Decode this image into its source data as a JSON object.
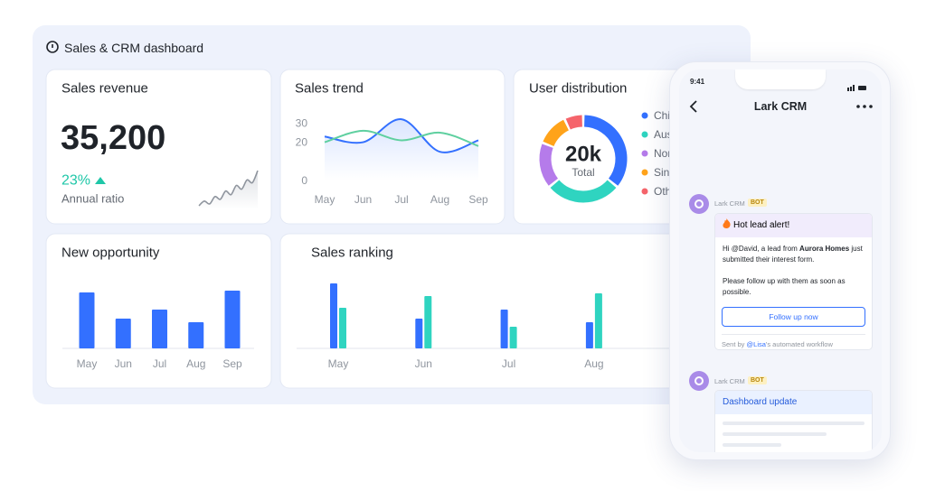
{
  "header": {
    "title": "Sales & CRM dashboard"
  },
  "revenue_card": {
    "title": "Sales revenue",
    "value": "35,200",
    "ratio": "23%",
    "ratio_label": "Annual ratio",
    "sparkline": {
      "values": [
        2,
        7,
        4,
        12,
        9,
        18,
        14,
        24,
        20,
        30,
        27,
        40
      ],
      "ylim": [
        0,
        45
      ],
      "color": "#8f959e"
    }
  },
  "chart_data": [
    {
      "type": "line",
      "title": "Sales trend",
      "categories": [
        "May",
        "Jun",
        "Jul",
        "Aug",
        "Sep"
      ],
      "series": [
        {
          "color": "#3370ff",
          "values": [
            23,
            20,
            32,
            15,
            21
          ]
        },
        {
          "color": "#5fd0a0",
          "values": [
            20,
            26,
            21,
            25,
            18
          ]
        }
      ],
      "ylim": [
        0,
        33
      ],
      "yticks": [
        0,
        20,
        30
      ]
    },
    {
      "type": "donut",
      "title": "User distribution",
      "center_value": "20k",
      "center_label": "Total",
      "categories": [
        "Chi",
        "Aus",
        "Nor",
        "Sin",
        "Oth"
      ],
      "values": [
        36,
        28,
        17,
        12,
        7
      ],
      "colors": [
        "#3370ff",
        "#2fd4c0",
        "#b57bea",
        "#ffa31a",
        "#f5646b"
      ]
    },
    {
      "type": "bar",
      "title": "New opportunity",
      "categories": [
        "May",
        "Jun",
        "Jul",
        "Aug",
        "Sep"
      ],
      "values": [
        62,
        33,
        43,
        29,
        64
      ],
      "color": "#3370ff",
      "ylim": [
        0,
        70
      ]
    },
    {
      "type": "grouped_bar",
      "title": "Sales ranking",
      "categories": [
        "May",
        "Jun",
        "Jul",
        "Aug"
      ],
      "series": [
        {
          "color": "#3370ff",
          "values": [
            72,
            33,
            43,
            29
          ]
        },
        {
          "color": "#2fd4c0",
          "values": [
            45,
            58,
            24,
            61
          ]
        }
      ],
      "ylim": [
        0,
        80
      ]
    }
  ],
  "phone": {
    "time": "9:41",
    "app_title": "Lark CRM",
    "messages": [
      {
        "sender": "Lark CRM",
        "badge": "BOT",
        "title": "Hot lead alert!",
        "body": [
          "Hi @David, a lead from ",
          "Aurora Homes",
          " just submitted their interest form."
        ],
        "body2": "Please follow up with them as soon as possible.",
        "button": "Follow up now",
        "footer": [
          "Sent by ",
          "@Lisa",
          "'s automated workflow"
        ]
      },
      {
        "sender": "Lark CRM",
        "badge": "BOT",
        "title": "Dashboard update"
      }
    ]
  }
}
